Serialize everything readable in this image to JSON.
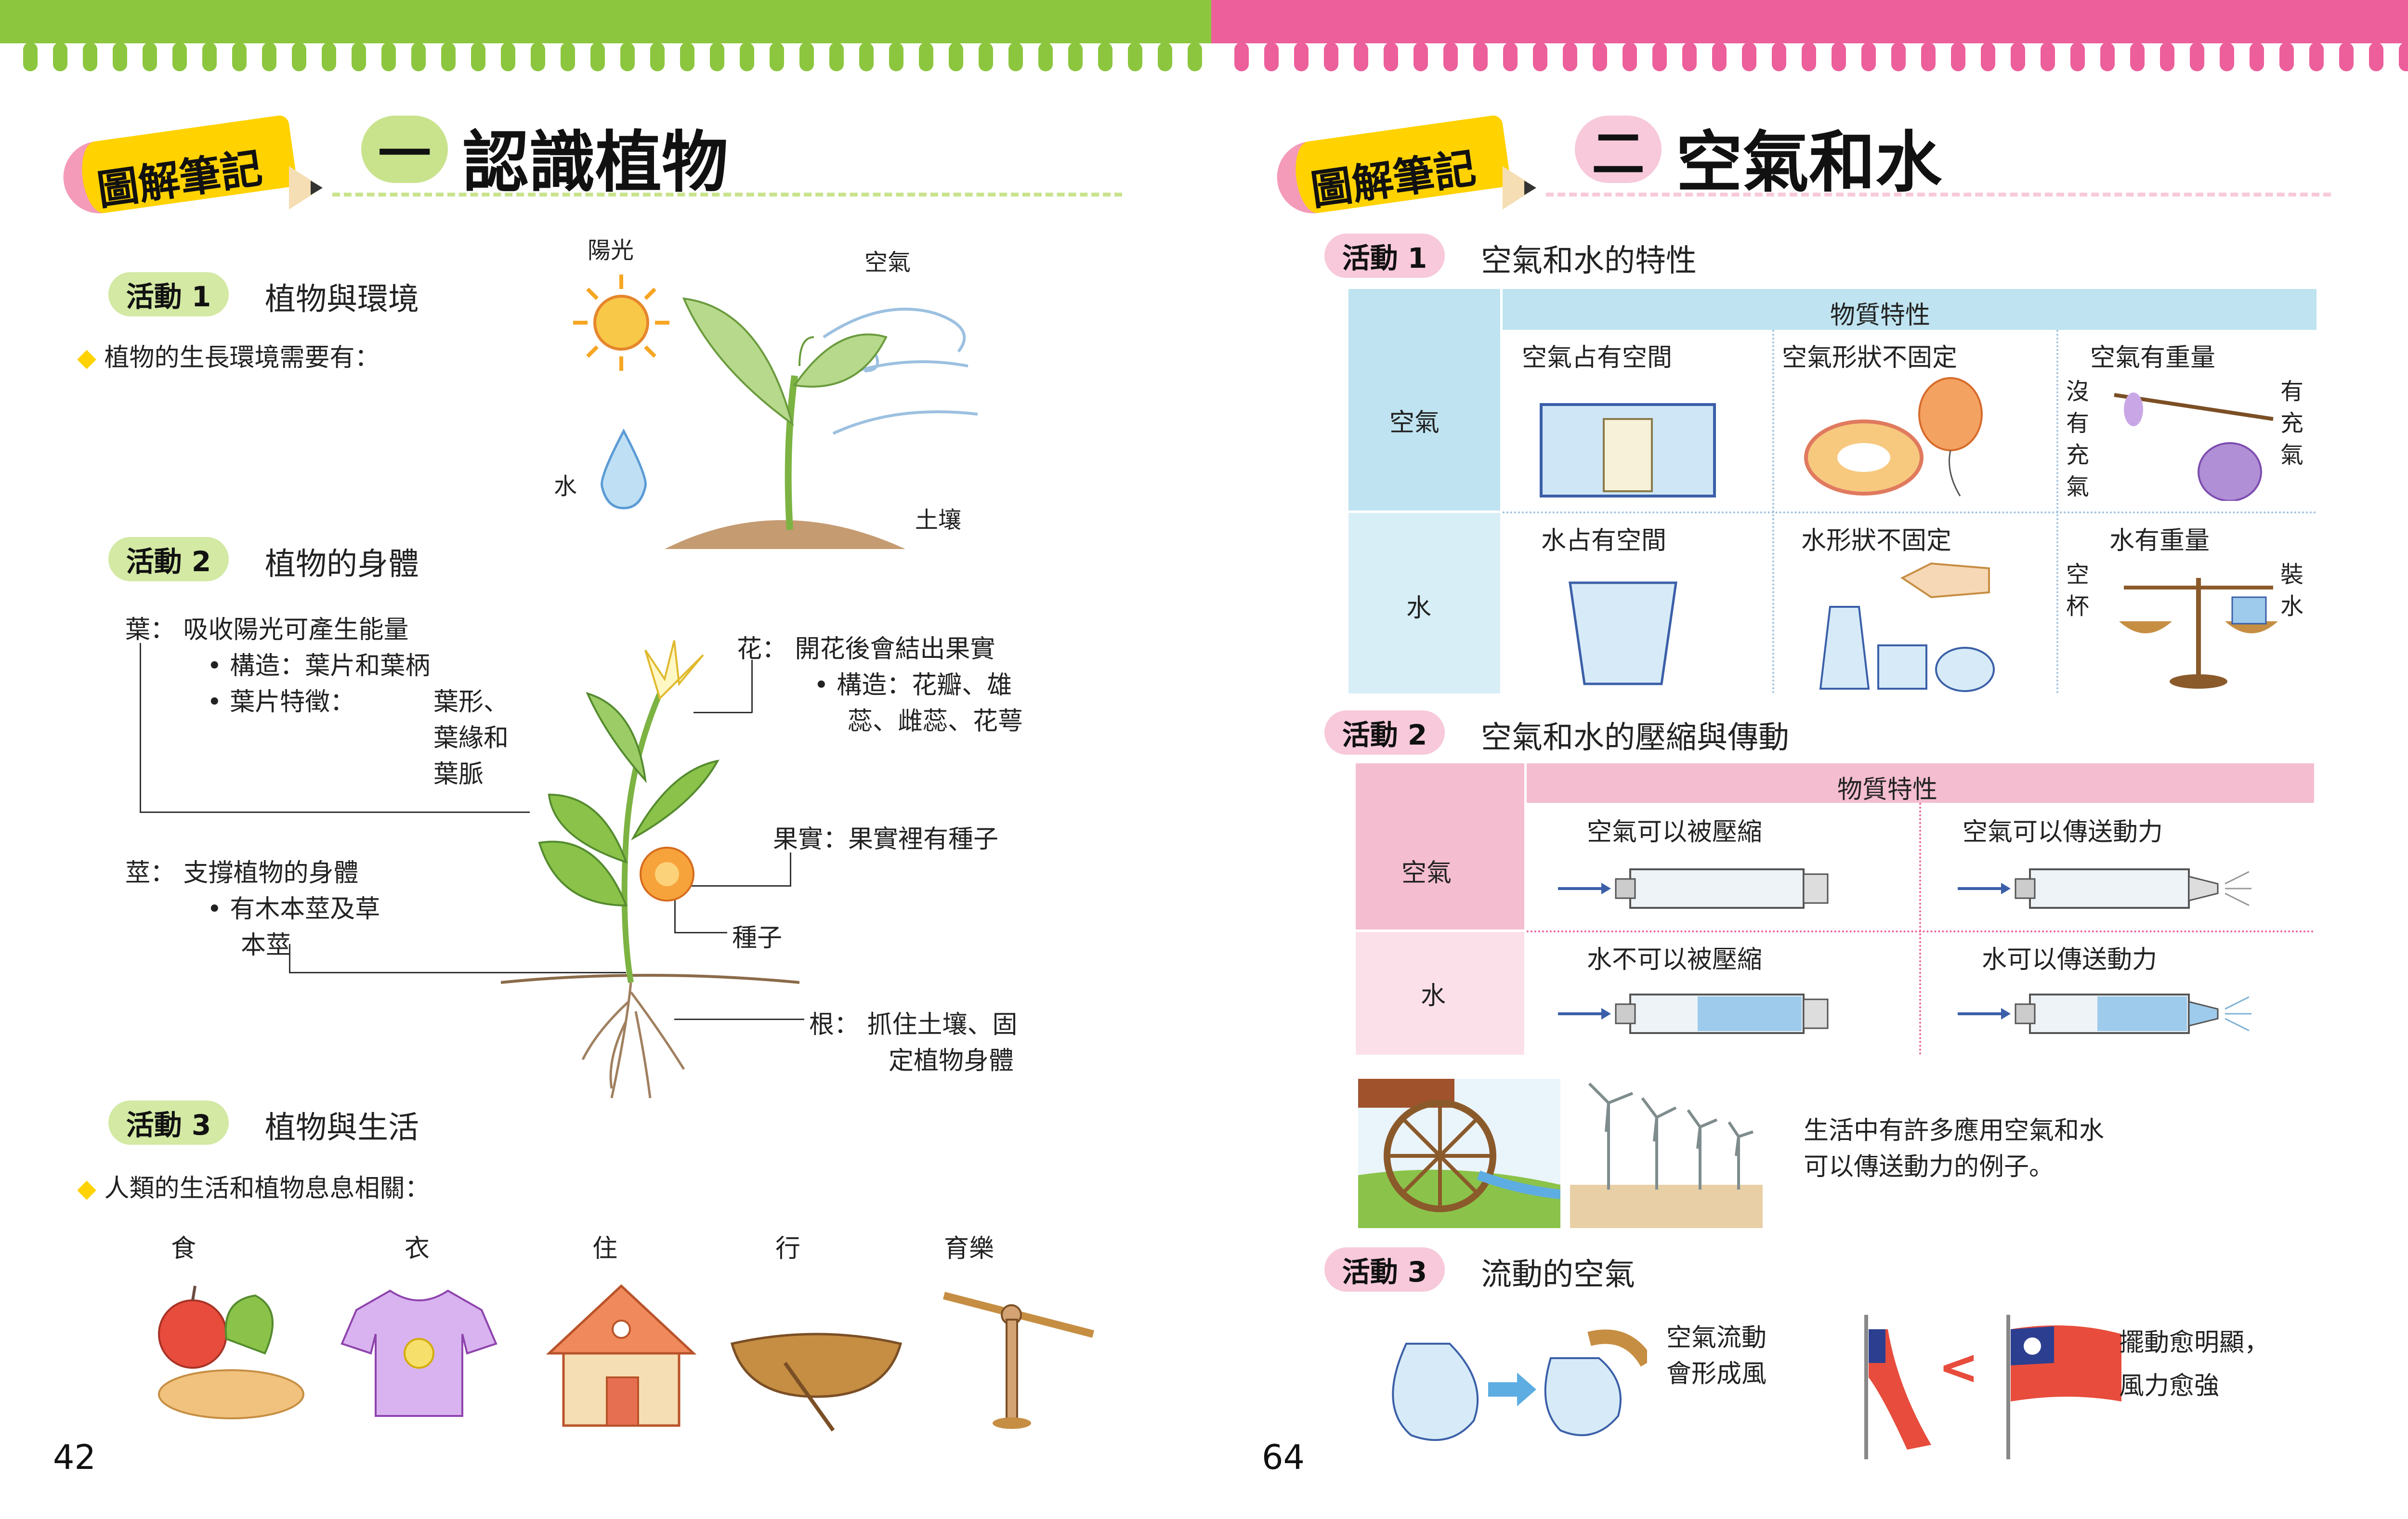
{
  "colors": {
    "green": "#8cc63f",
    "pink": "#ec5f9b",
    "tag_yellow": "#ffd200",
    "tag_pink": "#f39bb8",
    "chip_green": "#d3e9a4",
    "chip_pink": "#f7c9da",
    "table_blue": "#bfe3f0",
    "table_pink": "#f4bdd0"
  },
  "left": {
    "tag": "圖解筆記",
    "num": "一",
    "title": "認識植物",
    "a1": {
      "chip": "活動 1",
      "title": "植物與環境",
      "bullet": "植物的生長環境需要有：",
      "labels": {
        "sun": "陽光",
        "air": "空氣",
        "water": "水",
        "soil": "土壤"
      }
    },
    "a2": {
      "chip": "活動 2",
      "title": "植物的身體",
      "leaf": {
        "name": "葉：",
        "desc": "吸收陽光可產生能量",
        "b1": "• 構造：葉片和葉柄",
        "b2": "• 葉片特徵：",
        "b2a": "葉形、",
        "b2b": "葉緣和",
        "b2c": "葉脈"
      },
      "flower": {
        "name": "花：",
        "desc": "開花後會結出果實",
        "b1": "• 構造：花瓣、雄",
        "b1b": "蕊、雌蕊、花萼"
      },
      "fruit": "果實：果實裡有種子",
      "seed": "種子",
      "stem": {
        "name": "莖：",
        "desc": "支撐植物的身體",
        "b1": "• 有木本莖及草",
        "b1b": "本莖"
      },
      "root": {
        "name": "根：",
        "desc": "抓住土壤、固",
        "desc2": "定植物身體"
      }
    },
    "a3": {
      "chip": "活動 3",
      "title": "植物與生活",
      "bullet": "人類的生活和植物息息相關：",
      "items": [
        "食",
        "衣",
        "住",
        "行",
        "育樂"
      ]
    },
    "page": "42"
  },
  "right": {
    "tag": "圖解筆記",
    "num": "二",
    "title": "空氣和水",
    "a1": {
      "chip": "活動 1",
      "title": "空氣和水的特性",
      "header": "物質特性",
      "row1": "空氣",
      "row2": "水",
      "c11": "空氣占有空間",
      "c12": "空氣形狀不固定",
      "c13": "空氣有重量",
      "no_air": "沒有充氣",
      "has_air": "有充氣",
      "c21": "水占有空間",
      "c22": "水形狀不固定",
      "c23": "水有重量",
      "empty_cup": "空杯",
      "water_cup": "裝水"
    },
    "a2": {
      "chip": "活動 2",
      "title": "空氣和水的壓縮與傳動",
      "header": "物質特性",
      "row1": "空氣",
      "row2": "水",
      "c11": "空氣可以被壓縮",
      "c12": "空氣可以傳送動力",
      "c21": "水不可以被壓縮",
      "c22": "水可以傳送動力",
      "caption1": "生活中有許多應用空氣和水",
      "caption2": "可以傳送動力的例子。"
    },
    "a3": {
      "chip": "活動 3",
      "title": "流動的空氣",
      "t1": "空氣流動",
      "t2": "會形成風",
      "compare": "<",
      "r1": "擺動愈明顯，",
      "r2": "風力愈強"
    },
    "page": "64"
  }
}
